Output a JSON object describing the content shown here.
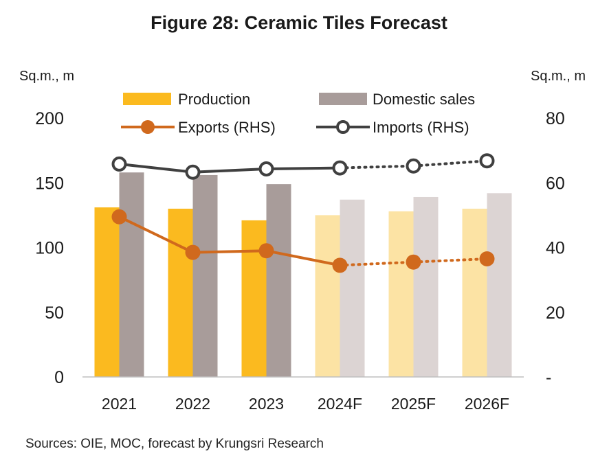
{
  "title": "Figure 28: Ceramic Tiles Forecast",
  "source": "Sources: OIE, MOC, forecast by Krungsri Research",
  "chart_data": {
    "type": "bar",
    "combo": "bar + line (dual axis)",
    "categories": [
      "2021",
      "2022",
      "2023",
      "2024F",
      "2025F",
      "2026F"
    ],
    "forecast_start": "2024F",
    "y_left": {
      "label": "Sq.m., m",
      "ylim": [
        0,
        200
      ],
      "ticks": [
        "0",
        "50",
        "100",
        "150",
        "200"
      ]
    },
    "y_right": {
      "label": "Sq.m., m",
      "ylim": [
        0,
        80
      ],
      "ticks": [
        "-",
        "20",
        "40",
        "60",
        "80"
      ]
    },
    "grid": false,
    "legend_position": "top",
    "series": [
      {
        "name": "Production",
        "type": "bar",
        "axis": "left",
        "color": "#FBBA1F",
        "forecast_color": "#FCE3A4",
        "values": [
          131,
          130,
          121,
          125,
          128,
          130
        ]
      },
      {
        "name": "Domestic sales",
        "type": "bar",
        "axis": "left",
        "color": "#A89C9A",
        "forecast_color": "#DCD4D3",
        "values": [
          158,
          156,
          149,
          137,
          139,
          142
        ]
      },
      {
        "name": "Exports (RHS)",
        "type": "line",
        "axis": "right",
        "color": "#D0691D",
        "marker": "filled-circle",
        "values": [
          49.5,
          38.5,
          39,
          34.5,
          35.5,
          36.5
        ]
      },
      {
        "name": "Imports (RHS)",
        "type": "line",
        "axis": "right",
        "color": "#404040",
        "marker": "hollow-circle",
        "values": [
          65.8,
          63.3,
          64.3,
          64.6,
          65.2,
          66.8
        ]
      }
    ]
  }
}
